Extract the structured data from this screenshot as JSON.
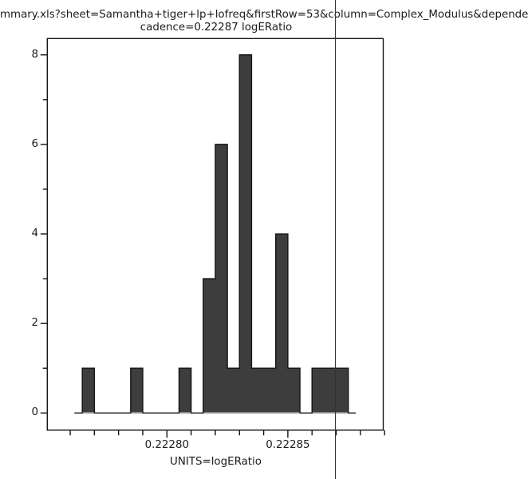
{
  "title": {
    "line1": "mmary.xls?sheet=Samantha+tiger+lp+lofreq&firstRow=53&column=Complex_Modulus&depende",
    "line2": "cadence=0.22287 logERatio"
  },
  "chart_data": {
    "type": "bar",
    "subtype": "histogram",
    "title": "cadence=0.22287 logERatio",
    "xlabel": "UNITS=logERatio",
    "ylabel": "",
    "xlim": [
      0.2227505,
      0.2228895
    ],
    "ylim": [
      0,
      8.75
    ],
    "grid": false,
    "legend": false,
    "bin_width": 5e-06,
    "bins": [
      {
        "start": 0.222765,
        "count": 1
      },
      {
        "start": 0.22277,
        "count": 0
      },
      {
        "start": 0.222775,
        "count": 0
      },
      {
        "start": 0.22278,
        "count": 0
      },
      {
        "start": 0.222785,
        "count": 1
      },
      {
        "start": 0.22279,
        "count": 0
      },
      {
        "start": 0.222795,
        "count": 0
      },
      {
        "start": 0.2228,
        "count": 0
      },
      {
        "start": 0.222805,
        "count": 1
      },
      {
        "start": 0.22281,
        "count": 0
      },
      {
        "start": 0.222815,
        "count": 3
      },
      {
        "start": 0.22282,
        "count": 6
      },
      {
        "start": 0.222825,
        "count": 1
      },
      {
        "start": 0.22283,
        "count": 8
      },
      {
        "start": 0.222835,
        "count": 1
      },
      {
        "start": 0.22284,
        "count": 1
      },
      {
        "start": 0.222845,
        "count": 4
      },
      {
        "start": 0.22285,
        "count": 1
      },
      {
        "start": 0.222855,
        "count": 0
      },
      {
        "start": 0.22286,
        "count": 1
      },
      {
        "start": 0.222865,
        "count": 1
      },
      {
        "start": 0.22287,
        "count": 1
      }
    ],
    "x_ticks": {
      "major": [
        {
          "value": 0.2228,
          "label": "0.22280"
        },
        {
          "value": 0.22285,
          "label": "0.22285"
        }
      ],
      "minor_values": [
        0.22276,
        0.22277,
        0.22278,
        0.22279,
        0.22281,
        0.22282,
        0.22283,
        0.22284,
        0.22286,
        0.22287,
        0.22288,
        0.22289
      ]
    },
    "y_ticks": {
      "major": [
        {
          "value": 0,
          "label": "0"
        },
        {
          "value": 2,
          "label": "2"
        },
        {
          "value": 4,
          "label": "4"
        },
        {
          "value": 6,
          "label": "6"
        },
        {
          "value": 8,
          "label": "8"
        }
      ],
      "minor_values": [
        1,
        3,
        5,
        7
      ]
    },
    "marker_line": {
      "value": 0.22287
    }
  },
  "colors": {
    "background": "#ffffff",
    "bar_fill": "#3d3d3d",
    "outline": "#141414",
    "marker": "#333333",
    "text": "#1c1c1c",
    "baseline_under_bars": "#9b9b9b"
  }
}
